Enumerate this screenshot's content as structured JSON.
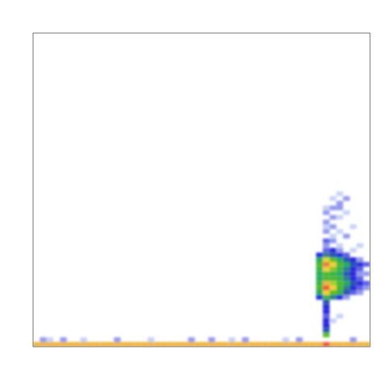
{
  "chart_data": {
    "type": "heatmap",
    "tick_labels": false,
    "grid": false,
    "xlim": [
      0,
      100
    ],
    "ylim": [
      0,
      100
    ],
    "cell_size": [
      2,
      1.5
    ],
    "color_range": [
      0,
      1
    ],
    "cells": [
      [
        1,
        0.75,
        0.85
      ],
      [
        3,
        0.75,
        0.85
      ],
      [
        5,
        0.75,
        0.85
      ],
      [
        7,
        0.75,
        0.85
      ],
      [
        9,
        0.75,
        0.85
      ],
      [
        11,
        0.75,
        0.85
      ],
      [
        13,
        0.75,
        0.85
      ],
      [
        15,
        0.75,
        0.85
      ],
      [
        17,
        0.75,
        0.85
      ],
      [
        19,
        0.75,
        0.85
      ],
      [
        21,
        0.75,
        0.85
      ],
      [
        23,
        0.75,
        0.85
      ],
      [
        25,
        0.75,
        0.85
      ],
      [
        27,
        0.75,
        0.85
      ],
      [
        29,
        0.75,
        0.85
      ],
      [
        31,
        0.75,
        0.85
      ],
      [
        33,
        0.75,
        0.85
      ],
      [
        35,
        0.75,
        0.85
      ],
      [
        37,
        0.75,
        0.85
      ],
      [
        39,
        0.75,
        0.85
      ],
      [
        41,
        0.75,
        0.85
      ],
      [
        43,
        0.75,
        0.85
      ],
      [
        45,
        0.75,
        0.85
      ],
      [
        47,
        0.75,
        0.85
      ],
      [
        49,
        0.75,
        0.85
      ],
      [
        51,
        0.75,
        0.85
      ],
      [
        53,
        0.75,
        0.85
      ],
      [
        55,
        0.75,
        0.85
      ],
      [
        57,
        0.75,
        0.85
      ],
      [
        59,
        0.75,
        0.85
      ],
      [
        61,
        0.75,
        0.85
      ],
      [
        63,
        0.75,
        0.85
      ],
      [
        65,
        0.75,
        0.85
      ],
      [
        67,
        0.75,
        0.85
      ],
      [
        69,
        0.75,
        0.85
      ],
      [
        71,
        0.75,
        0.85
      ],
      [
        73,
        0.75,
        0.85
      ],
      [
        75,
        0.75,
        0.85
      ],
      [
        77,
        0.75,
        0.85
      ],
      [
        79,
        0.75,
        0.85
      ],
      [
        81,
        0.75,
        0.85
      ],
      [
        83,
        0.75,
        0.85
      ],
      [
        85,
        0.75,
        0.85
      ],
      [
        87,
        0.75,
        1.0
      ],
      [
        89,
        0.75,
        0.85
      ],
      [
        91,
        0.75,
        0.85
      ],
      [
        93,
        0.75,
        0.85
      ],
      [
        95,
        0.75,
        0.85
      ],
      [
        97,
        0.75,
        0.85
      ],
      [
        99,
        0.75,
        0.85
      ],
      [
        3,
        2.25,
        0.2
      ],
      [
        5,
        2.25,
        0.15
      ],
      [
        9,
        2.25,
        0.2
      ],
      [
        15,
        2.25,
        0.15
      ],
      [
        25,
        2.25,
        0.2
      ],
      [
        35,
        2.25,
        0.15
      ],
      [
        47,
        2.25,
        0.2
      ],
      [
        53,
        2.25,
        0.2
      ],
      [
        59,
        2.25,
        0.15
      ],
      [
        63,
        2.25,
        0.2
      ],
      [
        75,
        2.25,
        0.15
      ],
      [
        79,
        2.25,
        0.2
      ],
      [
        95,
        2.25,
        0.2
      ],
      [
        87,
        3.75,
        0.6
      ],
      [
        87,
        5.25,
        0.35
      ],
      [
        87,
        6.75,
        0.3
      ],
      [
        87,
        8.25,
        0.3
      ],
      [
        87,
        9.75,
        0.25
      ],
      [
        87,
        11.25,
        0.3
      ],
      [
        87,
        12.75,
        0.3
      ],
      [
        87,
        14.25,
        0.35
      ],
      [
        89,
        8.25,
        0.15
      ],
      [
        91,
        9.75,
        0.15
      ],
      [
        85,
        15.75,
        0.3
      ],
      [
        87,
        15.75,
        0.5
      ],
      [
        89,
        15.75,
        0.4
      ],
      [
        91,
        15.75,
        0.3
      ],
      [
        93,
        15.75,
        0.2
      ],
      [
        85,
        17.25,
        0.45
      ],
      [
        87,
        17.25,
        0.8
      ],
      [
        89,
        17.25,
        0.6
      ],
      [
        91,
        17.25,
        0.5
      ],
      [
        93,
        17.25,
        0.35
      ],
      [
        95,
        17.25,
        0.25
      ],
      [
        97,
        17.25,
        0.2
      ],
      [
        85,
        18.75,
        0.55
      ],
      [
        87,
        18.75,
        1.0
      ],
      [
        89,
        18.75,
        0.8
      ],
      [
        91,
        18.75,
        0.55
      ],
      [
        93,
        18.75,
        0.4
      ],
      [
        95,
        18.75,
        0.3
      ],
      [
        97,
        18.75,
        0.25
      ],
      [
        99,
        18.75,
        0.2
      ],
      [
        85,
        20.25,
        0.5
      ],
      [
        87,
        20.25,
        0.85
      ],
      [
        89,
        20.25,
        0.7
      ],
      [
        91,
        20.25,
        0.55
      ],
      [
        93,
        20.25,
        0.45
      ],
      [
        95,
        20.25,
        0.35
      ],
      [
        97,
        20.25,
        0.3
      ],
      [
        99,
        20.25,
        0.25
      ],
      [
        85,
        21.75,
        0.45
      ],
      [
        87,
        21.75,
        0.55
      ],
      [
        89,
        21.75,
        0.55
      ],
      [
        91,
        21.75,
        0.5
      ],
      [
        93,
        21.75,
        0.4
      ],
      [
        95,
        21.75,
        0.3
      ],
      [
        97,
        21.75,
        0.25
      ],
      [
        85,
        23.25,
        0.45
      ],
      [
        87,
        23.25,
        0.55
      ],
      [
        89,
        23.25,
        0.5
      ],
      [
        91,
        23.25,
        0.45
      ],
      [
        93,
        23.25,
        0.35
      ],
      [
        95,
        23.25,
        0.3
      ],
      [
        97,
        23.25,
        0.2
      ],
      [
        99,
        23.25,
        0.2
      ],
      [
        85,
        24.75,
        0.5
      ],
      [
        87,
        24.75,
        0.8
      ],
      [
        89,
        24.75,
        0.65
      ],
      [
        91,
        24.75,
        0.5
      ],
      [
        93,
        24.75,
        0.4
      ],
      [
        95,
        24.75,
        0.3
      ],
      [
        97,
        24.75,
        0.25
      ],
      [
        85,
        26.25,
        0.55
      ],
      [
        87,
        26.25,
        0.95
      ],
      [
        89,
        26.25,
        0.8
      ],
      [
        91,
        26.25,
        0.55
      ],
      [
        93,
        26.25,
        0.45
      ],
      [
        95,
        26.25,
        0.35
      ],
      [
        97,
        26.25,
        0.3
      ],
      [
        99,
        26.25,
        0.25
      ],
      [
        85,
        27.75,
        0.45
      ],
      [
        87,
        27.75,
        0.75
      ],
      [
        89,
        27.75,
        0.6
      ],
      [
        91,
        27.75,
        0.45
      ],
      [
        93,
        27.75,
        0.35
      ],
      [
        95,
        27.75,
        0.3
      ],
      [
        97,
        27.75,
        0.2
      ],
      [
        85,
        29.25,
        0.3
      ],
      [
        87,
        29.25,
        0.4
      ],
      [
        89,
        29.25,
        0.35
      ],
      [
        91,
        29.25,
        0.3
      ],
      [
        93,
        29.25,
        0.25
      ],
      [
        87,
        30.75,
        0.25
      ],
      [
        89,
        30.75,
        0.3
      ],
      [
        91,
        30.75,
        0.2
      ],
      [
        95,
        30.75,
        0.15
      ],
      [
        87,
        32.25,
        0.2
      ],
      [
        91,
        32.25,
        0.15
      ],
      [
        97,
        32.25,
        0.15
      ],
      [
        87,
        33.75,
        0.25
      ],
      [
        89,
        33.75,
        0.2
      ],
      [
        89,
        35.25,
        0.15
      ],
      [
        93,
        35.25,
        0.2
      ],
      [
        87,
        36.75,
        0.2
      ],
      [
        91,
        36.75,
        0.15
      ],
      [
        87,
        38.25,
        0.15
      ],
      [
        89,
        38.25,
        0.2
      ],
      [
        95,
        38.25,
        0.15
      ],
      [
        87,
        39.75,
        0.2
      ],
      [
        89,
        41.25,
        0.2
      ],
      [
        91,
        41.25,
        0.15
      ],
      [
        87,
        42.75,
        0.2
      ],
      [
        93,
        42.75,
        0.15
      ],
      [
        87,
        44.25,
        0.15
      ],
      [
        89,
        44.25,
        0.2
      ],
      [
        91,
        44.25,
        0.2
      ],
      [
        91,
        45.75,
        0.2
      ],
      [
        89,
        47.25,
        0.15
      ],
      [
        93,
        47.25,
        0.2
      ],
      [
        91,
        48.75,
        0.15
      ]
    ]
  }
}
